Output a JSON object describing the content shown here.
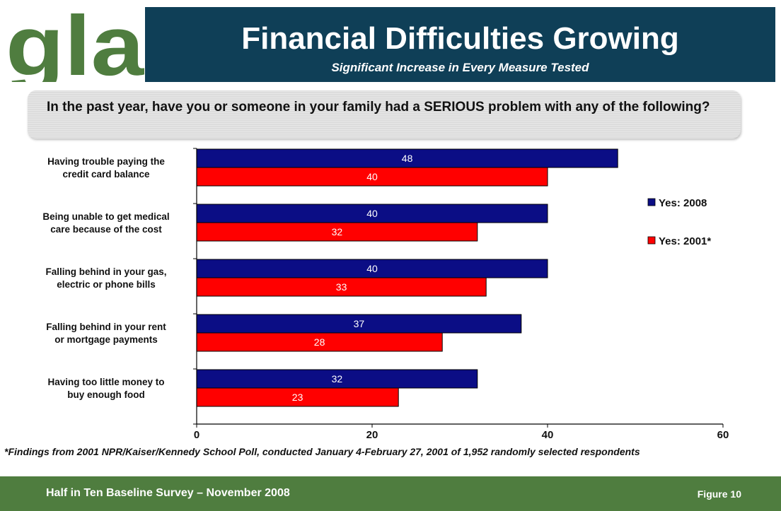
{
  "logo": {
    "text": "gla"
  },
  "header": {
    "title": "Financial Difficulties Growing",
    "subtitle": "Significant Increase in Every Measure Tested"
  },
  "question": "In the past year, have you or someone in your family had a SERIOUS problem with any of the following?",
  "chart_data": {
    "type": "bar",
    "orientation": "horizontal",
    "categories": [
      [
        "Having trouble paying the",
        "credit card balance"
      ],
      [
        "Being unable to get medical",
        "care because of the cost"
      ],
      [
        "Falling behind in your gas,",
        "electric or phone bills"
      ],
      [
        "Falling behind in your rent",
        "or mortgage payments"
      ],
      [
        "Having too little money to",
        "buy enough food"
      ]
    ],
    "series": [
      {
        "name": "Yes: 2008",
        "color": "#0b0d85",
        "values": [
          48,
          40,
          40,
          37,
          32
        ]
      },
      {
        "name": "Yes: 2001*",
        "color": "#ff0000",
        "values": [
          40,
          32,
          33,
          28,
          23
        ]
      }
    ],
    "xlim": [
      0,
      60
    ],
    "xticks": [
      0,
      20,
      40,
      60
    ],
    "grid": false,
    "legend_position": "right",
    "data_labels": true
  },
  "footnote": "*Findings from 2001 NPR/Kaiser/Kennedy School Poll, conducted January 4-February 27, 2001 of 1,952 randomly selected respondents",
  "footer": {
    "left": "Half in Ten Baseline Survey – November 2008",
    "right": "Figure 10"
  },
  "colors": {
    "header_bg": "#0f3f57",
    "footer_bg": "#4f7d3f",
    "logo_green": "#4f7d3f"
  }
}
